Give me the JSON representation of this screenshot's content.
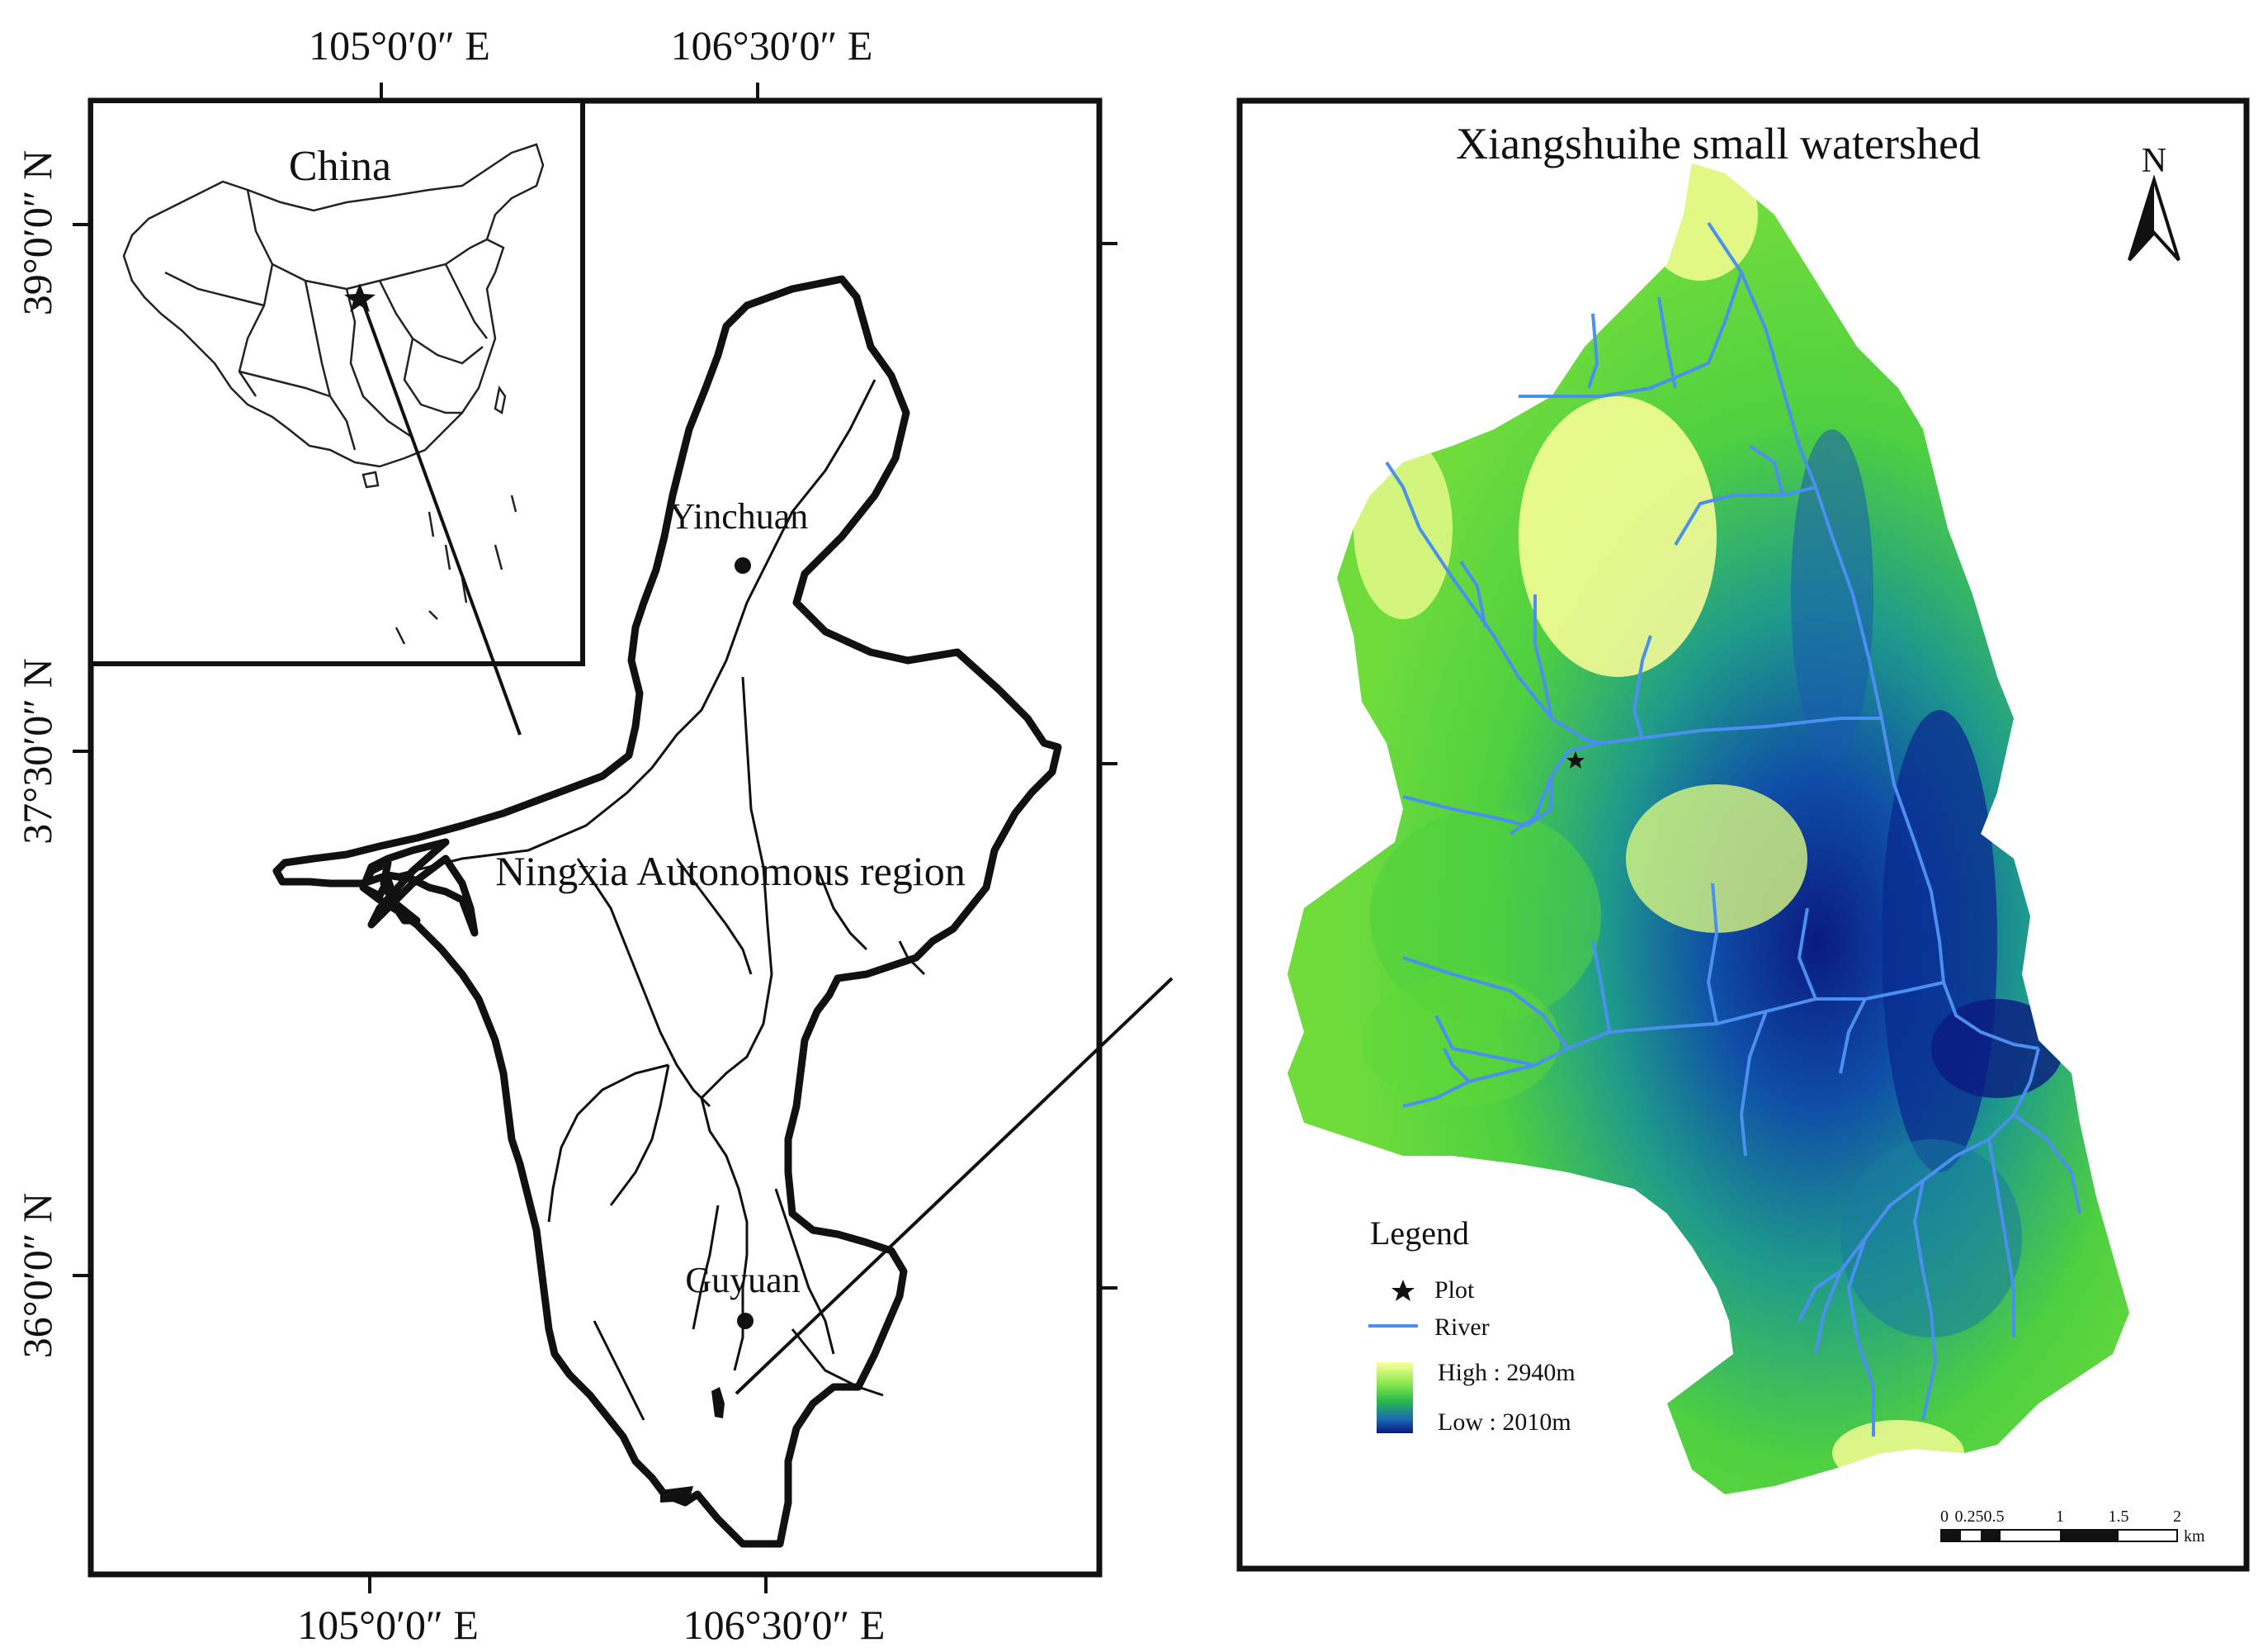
{
  "left_map": {
    "top_axis_labels": [
      "105°0′0″ E",
      "106°30′0″ E"
    ],
    "bottom_axis_labels": [
      "105°0′0″ E",
      "106°30′0″ E"
    ],
    "left_axis_labels": [
      "39°0′0″ N",
      "37°30′0″ N",
      "36°0′0″ N"
    ],
    "inset_label": "China",
    "region_label": "Ningxia Autonomous region",
    "cities": [
      {
        "name": "Yinchuan"
      },
      {
        "name": "Guyuan"
      }
    ]
  },
  "right_map": {
    "title": "Xiangshuihe small watershed",
    "north_label": "N",
    "legend": {
      "title": "Legend",
      "plot_label": "Plot",
      "river_label": "River",
      "high_label": "High : 2940m",
      "low_label": "Low : 2010m"
    },
    "scalebar": {
      "ticks": [
        "0",
        "0.25",
        "0.5",
        "1",
        "1.5",
        "2"
      ],
      "unit": "km"
    },
    "elevation_colors": [
      "#ffff99",
      "#aaf060",
      "#5ed838",
      "#28b84c",
      "#1a8aa0",
      "#0a2a90"
    ],
    "river_color": "#4b8ff0"
  }
}
